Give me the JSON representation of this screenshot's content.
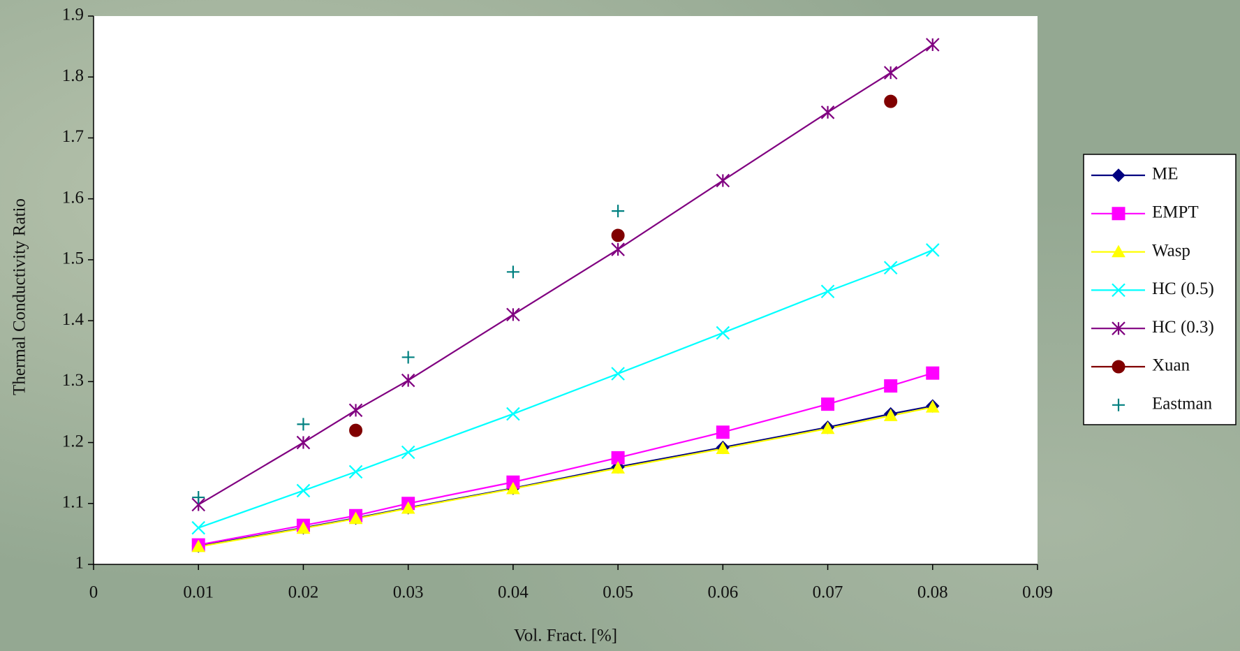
{
  "chart_data": {
    "type": "line",
    "x_label": "Vol. Fract. [%]",
    "y_label": "Thermal Conductivity Ratio",
    "xlim": [
      0,
      0.09
    ],
    "xticks": [
      0,
      0.01,
      0.02,
      0.03,
      0.04,
      0.05,
      0.06,
      0.07,
      0.08,
      0.09
    ],
    "ylim": [
      1,
      1.9
    ],
    "yticks": [
      1,
      1.1,
      1.2,
      1.3,
      1.4,
      1.5,
      1.6,
      1.7,
      1.8,
      1.9
    ],
    "grid": false,
    "legend": "right",
    "series": [
      {
        "name": "ME",
        "color": "#000080",
        "marker": "diamond",
        "line": true,
        "x": [
          0.01,
          0.02,
          0.025,
          0.03,
          0.04,
          0.05,
          0.06,
          0.07,
          0.076,
          0.08
        ],
        "values": [
          1.03,
          1.06,
          1.076,
          1.093,
          1.125,
          1.16,
          1.192,
          1.225,
          1.247,
          1.26
        ]
      },
      {
        "name": "EMPT",
        "color": "#ff00ff",
        "marker": "square",
        "line": true,
        "x": [
          0.01,
          0.02,
          0.025,
          0.03,
          0.04,
          0.05,
          0.06,
          0.07,
          0.076,
          0.08
        ],
        "values": [
          1.032,
          1.064,
          1.08,
          1.1,
          1.135,
          1.175,
          1.217,
          1.263,
          1.293,
          1.314
        ]
      },
      {
        "name": "Wasp",
        "color": "#ffff00",
        "marker": "triangle",
        "line": true,
        "x": [
          0.01,
          0.02,
          0.025,
          0.03,
          0.04,
          0.05,
          0.06,
          0.07,
          0.076,
          0.08
        ],
        "values": [
          1.029,
          1.059,
          1.075,
          1.092,
          1.124,
          1.158,
          1.19,
          1.223,
          1.244,
          1.258
        ]
      },
      {
        "name": "HC (0.5)",
        "color": "#00ffff",
        "marker": "x",
        "line": true,
        "x": [
          0.01,
          0.02,
          0.025,
          0.03,
          0.04,
          0.05,
          0.06,
          0.07,
          0.076,
          0.08
        ],
        "values": [
          1.06,
          1.121,
          1.152,
          1.184,
          1.247,
          1.313,
          1.38,
          1.448,
          1.487,
          1.516
        ]
      },
      {
        "name": "HC (0.3)",
        "color": "#800080",
        "marker": "star",
        "line": true,
        "x": [
          0.01,
          0.02,
          0.025,
          0.03,
          0.04,
          0.05,
          0.06,
          0.07,
          0.076,
          0.08
        ],
        "values": [
          1.098,
          1.2,
          1.253,
          1.302,
          1.41,
          1.517,
          1.63,
          1.742,
          1.807,
          1.853
        ]
      },
      {
        "name": "Xuan",
        "color": "#800000",
        "marker": "circle",
        "line": false,
        "legend_line": true,
        "x": [
          0.025,
          0.05,
          0.076
        ],
        "values": [
          1.22,
          1.54,
          1.76
        ]
      },
      {
        "name": "Eastman",
        "color": "#008080",
        "marker": "plus",
        "line": false,
        "legend_line": false,
        "x": [
          0.01,
          0.02,
          0.03,
          0.04,
          0.05
        ],
        "values": [
          1.11,
          1.23,
          1.34,
          1.48,
          1.58
        ]
      }
    ]
  }
}
